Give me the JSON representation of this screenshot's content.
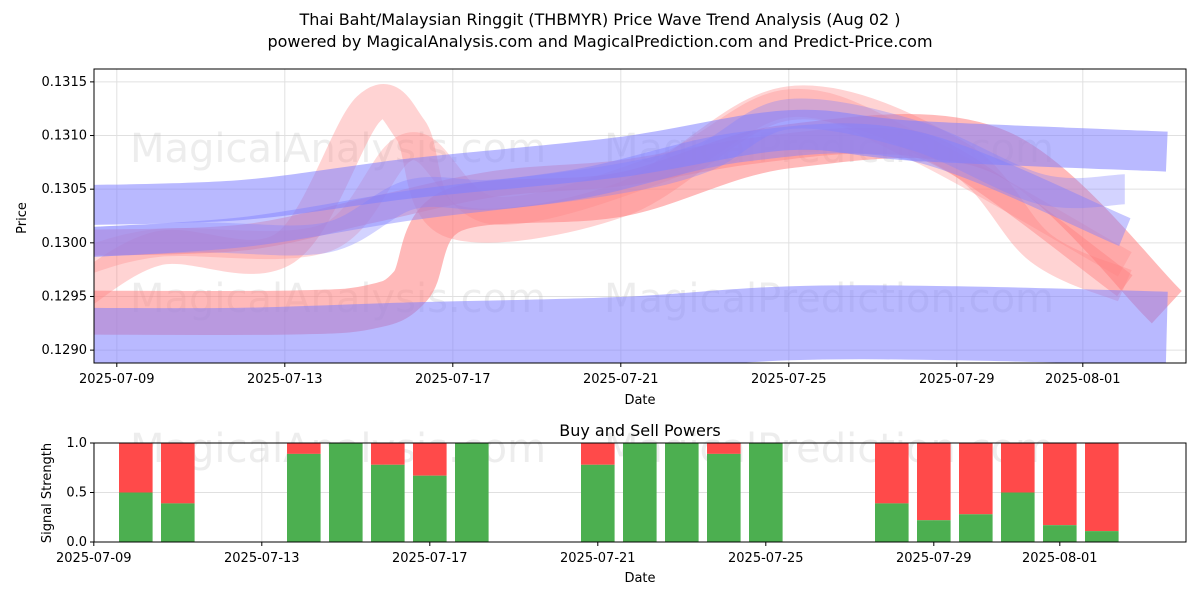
{
  "title_line1": "Thai Baht/Malaysian Ringgit (THBMYR) Price Wave Trend Analysis (Aug 02 )",
  "title_line2": "powered by MagicalAnalysis.com and MagicalPrediction.com and Predict-Price.com",
  "watermarks": [
    "MagicalAnalysis.com",
    "MagicalPrediction.com"
  ],
  "colors": {
    "buy": "#4caf50",
    "sell": "#ff4a4a",
    "red_band": "#ff8080",
    "blue_band": "#8080ff"
  },
  "chart_data": [
    {
      "type": "area",
      "title": "",
      "xlabel": "Date",
      "ylabel": "Price",
      "x_ticks": [
        "2025-07-09",
        "2025-07-13",
        "2025-07-17",
        "2025-07-21",
        "2025-07-25",
        "2025-07-29",
        "2025-08-01"
      ],
      "y_ticks": [
        "0.1290",
        "0.1295",
        "0.1300",
        "0.1305",
        "0.1310",
        "0.1315"
      ],
      "xlim": [
        "2025-07-08",
        "2025-08-03"
      ],
      "ylim": [
        0.12888,
        0.13162
      ],
      "grid": true,
      "series": [
        {
          "color": "red",
          "x": [
            "2025-07-08",
            "2025-07-13",
            "2025-07-15",
            "2025-07-16",
            "2025-07-17",
            "2025-07-21",
            "2025-07-25",
            "2025-07-30",
            "2025-08-03"
          ],
          "values": [
            0.12935,
            0.12935,
            0.1294,
            0.1296,
            0.1303,
            0.13045,
            0.1309,
            0.13085,
            0.1294
          ]
        },
        {
          "color": "red",
          "x": [
            "2025-07-08",
            "2025-07-10",
            "2025-07-13",
            "2025-07-15",
            "2025-07-16",
            "2025-07-17",
            "2025-07-21",
            "2025-07-25",
            "2025-07-29",
            "2025-07-31",
            "2025-08-02"
          ],
          "values": [
            0.1295,
            0.12995,
            0.12995,
            0.13125,
            0.13105,
            0.1302,
            0.1304,
            0.1313,
            0.1308,
            0.12995,
            0.1296
          ]
        },
        {
          "color": "red",
          "x": [
            "2025-07-08",
            "2025-07-10",
            "2025-07-14",
            "2025-07-16",
            "2025-07-18",
            "2025-07-22",
            "2025-07-25",
            "2025-07-28",
            "2025-08-02"
          ],
          "values": [
            0.1298,
            0.13,
            0.13005,
            0.1309,
            0.1303,
            0.1307,
            0.1313,
            0.1309,
            0.1298
          ]
        },
        {
          "color": "red",
          "x": [
            "2025-07-08",
            "2025-07-12",
            "2025-07-15",
            "2025-07-18",
            "2025-07-21",
            "2025-07-24",
            "2025-07-27",
            "2025-07-29",
            "2025-08-02"
          ],
          "values": [
            0.13,
            0.13005,
            0.1303,
            0.13055,
            0.13065,
            0.13085,
            0.13095,
            0.13075,
            0.1296
          ]
        },
        {
          "color": "blue",
          "x": [
            "2025-07-08",
            "2025-07-12",
            "2025-07-16",
            "2025-07-21",
            "2025-07-25",
            "2025-07-28",
            "2025-08-03"
          ],
          "values": [
            0.13035,
            0.1304,
            0.1306,
            0.1308,
            0.13105,
            0.13095,
            0.13085
          ]
        },
        {
          "color": "blue",
          "x": [
            "2025-07-08",
            "2025-07-12",
            "2025-07-16",
            "2025-07-21",
            "2025-07-25",
            "2025-07-29",
            "2025-08-03"
          ],
          "values": [
            0.12905,
            0.12905,
            0.1291,
            0.12915,
            0.12925,
            0.12925,
            0.1292
          ]
        },
        {
          "color": "blue",
          "x": [
            "2025-07-08",
            "2025-07-11",
            "2025-07-14",
            "2025-07-16",
            "2025-07-18",
            "2025-07-21",
            "2025-07-23",
            "2025-07-25",
            "2025-07-28",
            "2025-07-31",
            "2025-08-02"
          ],
          "values": [
            0.13,
            0.13005,
            0.13005,
            0.13045,
            0.13045,
            0.1306,
            0.1308,
            0.1312,
            0.131,
            0.1305,
            0.1305
          ]
        },
        {
          "color": "blue",
          "x": [
            "2025-07-08",
            "2025-07-12",
            "2025-07-16",
            "2025-07-20",
            "2025-07-24",
            "2025-07-28",
            "2025-08-02"
          ],
          "values": [
            0.13,
            0.1301,
            0.13035,
            0.13055,
            0.1309,
            0.1309,
            0.1301
          ]
        }
      ]
    },
    {
      "type": "bar",
      "title": "Buy and Sell Powers",
      "xlabel": "Date",
      "ylabel": "Signal Strength",
      "x_ticks": [
        "2025-07-09",
        "2025-07-13",
        "2025-07-17",
        "2025-07-21",
        "2025-07-25",
        "2025-07-29",
        "2025-08-01"
      ],
      "y_ticks": [
        "0.0",
        "0.5",
        "1.0"
      ],
      "ylim": [
        0,
        1
      ],
      "grid": true,
      "categories": [
        "2025-07-10",
        "2025-07-11",
        "2025-07-14",
        "2025-07-15",
        "2025-07-16",
        "2025-07-17",
        "2025-07-18",
        "2025-07-21",
        "2025-07-22",
        "2025-07-23",
        "2025-07-24",
        "2025-07-25",
        "2025-07-28",
        "2025-07-29",
        "2025-07-30",
        "2025-07-31",
        "2025-08-01",
        "2025-08-02"
      ],
      "series": [
        {
          "name": "",
          "values": [
            0.5,
            0.39,
            0.89,
            1.0,
            0.78,
            0.67,
            1.0,
            0.78,
            1.0,
            1.0,
            0.89,
            1.0,
            0.39,
            0.22,
            0.28,
            0.5,
            0.17,
            0.11
          ]
        }
      ]
    }
  ]
}
